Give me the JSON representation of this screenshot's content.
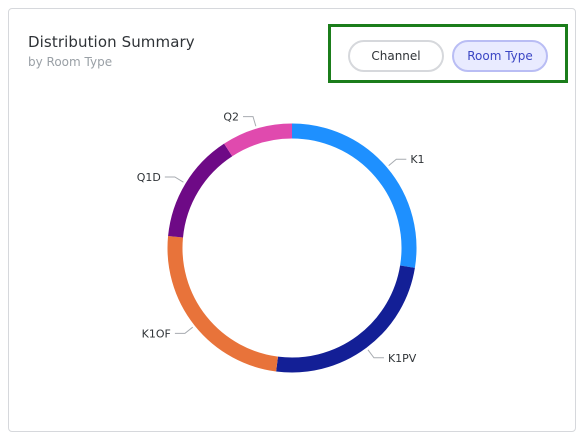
{
  "header": {
    "title": "Distribution Summary",
    "subtitle": "by Room Type"
  },
  "toggle": {
    "channel_label": "Channel",
    "room_type_label": "Room Type",
    "selected": "Room Type"
  },
  "colors": {
    "K1": "#1e90ff",
    "K1PV": "#131f96",
    "K1OF": "#e8733a",
    "Q1D": "#6e0a86",
    "Q2": "#e04aae",
    "selection_outline": "#1b7d1b"
  },
  "chart_data": {
    "type": "pie",
    "style": "donut",
    "title": "",
    "categories": [
      "K1",
      "K1PV",
      "K1OF",
      "Q1D",
      "Q2"
    ],
    "values": [
      27,
      24,
      24,
      14,
      9
    ],
    "legend": "none",
    "labels_on_chart": true
  }
}
